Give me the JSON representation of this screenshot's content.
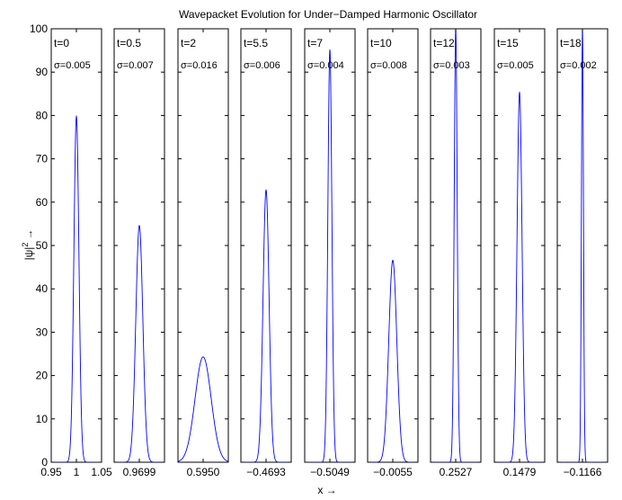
{
  "chart_data": {
    "type": "line",
    "title": "Wavepacket Evolution for Under−Damped Harmonic Oscillator",
    "xlabel": "x →",
    "ylabel_base": "|ψ|",
    "ylabel_sup": "2",
    "ylabel_arrow": "→",
    "ylim": [
      0,
      100
    ],
    "yticks": [
      "0",
      "10",
      "20",
      "30",
      "40",
      "50",
      "60",
      "70",
      "80",
      "90",
      "100"
    ],
    "line_color": "#0000ff",
    "grid": false,
    "panels": [
      {
        "t": "t=0",
        "sigma": "σ=0.005",
        "center": 1,
        "sigma_value": 0.005,
        "peak": 79.8,
        "xticks": [
          "0.95",
          "1",
          "1.05"
        ]
      },
      {
        "t": "t=0.5",
        "sigma": "σ=0.007",
        "center": 0.9699,
        "sigma_value": 0.007,
        "peak": 54.6,
        "xticks": [
          "0.9699"
        ]
      },
      {
        "t": "t=2",
        "sigma": "σ=0.016",
        "center": 0.595,
        "sigma_value": 0.016,
        "peak": 24.3,
        "xticks": [
          "0.5950"
        ]
      },
      {
        "t": "t=5.5",
        "sigma": "σ=0.006",
        "center": -0.4693,
        "sigma_value": 0.006,
        "peak": 62.8,
        "xticks": [
          "−0.4693"
        ]
      },
      {
        "t": "t=7",
        "sigma": "σ=0.004",
        "center": -0.5049,
        "sigma_value": 0.004,
        "peak": 95.2,
        "xticks": [
          "−0.5049"
        ]
      },
      {
        "t": "t=10",
        "sigma": "σ=0.008",
        "center": -0.0055,
        "sigma_value": 0.008,
        "peak": 46.6,
        "xticks": [
          "−0.0055"
        ]
      },
      {
        "t": "t=12",
        "sigma": "σ=0.003",
        "center": 0.2527,
        "sigma_value": 0.003,
        "peak": 100,
        "xticks": [
          "0.2527"
        ]
      },
      {
        "t": "t=15",
        "sigma": "σ=0.005",
        "center": 0.1479,
        "sigma_value": 0.005,
        "peak": 85.3,
        "xticks": [
          "0.1479"
        ]
      },
      {
        "t": "t=18",
        "sigma": "σ=0.002",
        "center": -0.1166,
        "sigma_value": 0.002,
        "peak": 100,
        "xticks": [
          "−0.1166"
        ]
      }
    ]
  }
}
